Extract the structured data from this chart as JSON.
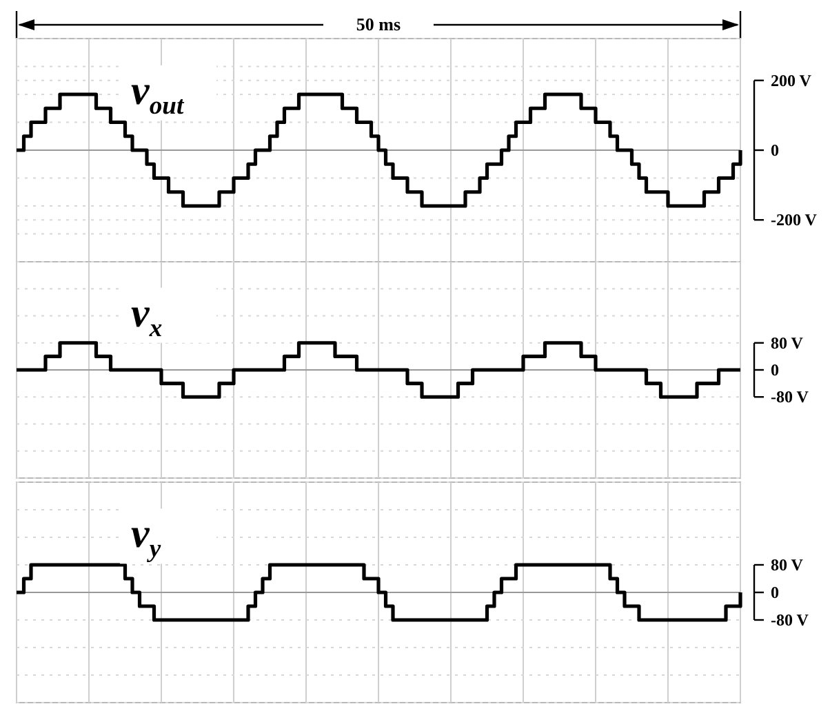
{
  "chart_data": [
    {
      "type": "step",
      "annotations": [
        "50 ms"
      ],
      "grid": true,
      "tick_labels": "y",
      "categories": [
        null,
        null,
        null,
        null,
        null,
        null,
        null,
        null,
        null,
        null,
        null,
        null,
        null,
        null,
        null,
        null,
        null,
        null,
        null,
        null,
        null,
        null,
        null,
        null,
        null,
        null,
        null,
        null,
        null,
        null,
        null,
        null,
        null,
        null,
        null,
        null,
        null,
        null,
        null,
        null,
        null,
        null,
        null,
        null,
        null,
        null,
        null,
        null,
        null,
        null,
        null,
        null,
        null,
        null,
        null,
        null,
        null,
        null,
        null,
        null,
        null,
        null,
        null,
        null,
        null,
        null,
        null,
        null,
        null,
        null,
        null,
        null,
        null,
        null,
        null,
        null,
        null,
        null,
        null,
        null,
        null,
        null,
        null,
        null,
        null,
        null,
        null,
        null,
        null,
        null,
        null,
        null,
        null,
        null,
        null,
        null,
        null,
        null,
        null,
        null,
        null
      ],
      "ylim": [
        -320,
        320
      ],
      "yticks": [
        {
          "value": -320,
          "label": null
        },
        {
          "value": -240,
          "label": null
        },
        {
          "value": -200,
          "label": "-200 V"
        },
        {
          "value": -160,
          "label": null
        },
        {
          "value": -80,
          "label": null
        },
        {
          "value": 0,
          "label": "0"
        },
        {
          "value": 80,
          "label": null
        },
        {
          "value": 160,
          "label": null
        },
        {
          "value": 200,
          "label": "200 V"
        },
        {
          "value": 240,
          "label": null
        },
        {
          "value": 320,
          "label": null
        }
      ],
      "series": [
        {
          "name": "v$_{out}$",
          "color": "#000000",
          "values": [
            0,
            40,
            80,
            80,
            120,
            120,
            160,
            160,
            160,
            160,
            160,
            120,
            120,
            80,
            80,
            40,
            0,
            0,
            -40,
            -80,
            -80,
            -120,
            -120,
            -160,
            -160,
            -160,
            -160,
            -160,
            -120,
            -120,
            -80,
            -80,
            -40,
            0,
            0,
            40,
            80,
            120,
            120,
            160,
            160,
            160,
            160,
            160,
            160,
            120,
            120,
            80,
            80,
            40,
            0,
            -40,
            -80,
            -80,
            -120,
            -120,
            -160,
            -160,
            -160,
            -160,
            -160,
            -160,
            -120,
            -120,
            -80,
            -40,
            -40,
            0,
            40,
            80,
            80,
            120,
            120,
            160,
            160,
            160,
            160,
            160,
            120,
            120,
            80,
            80,
            40,
            0,
            0,
            -40,
            -80,
            -120,
            -120,
            -120,
            -160,
            -160,
            -160,
            -160,
            -160,
            -120,
            -120,
            -80,
            -80,
            -40,
            0
          ]
        }
      ]
    },
    {
      "type": "step",
      "grid": true,
      "tick_labels": "y",
      "categories": [
        null,
        null,
        null,
        null,
        null,
        null,
        null,
        null,
        null,
        null,
        null,
        null,
        null,
        null,
        null,
        null,
        null,
        null,
        null,
        null,
        null,
        null,
        null,
        null,
        null,
        null,
        null,
        null,
        null,
        null,
        null,
        null,
        null,
        null,
        null,
        null,
        null,
        null,
        null,
        null,
        null,
        null,
        null,
        null,
        null,
        null,
        null,
        null,
        null,
        null,
        null,
        null,
        null,
        null,
        null,
        null,
        null,
        null,
        null,
        null,
        null,
        null,
        null,
        null,
        null,
        null,
        null,
        null,
        null,
        null,
        null,
        null,
        null,
        null,
        null,
        null,
        null,
        null,
        null,
        null,
        null,
        null,
        null,
        null,
        null,
        null,
        null,
        null,
        null,
        null,
        null,
        null,
        null,
        null,
        null,
        null,
        null,
        null,
        null,
        null,
        null
      ],
      "ylim": [
        -320,
        320
      ],
      "yticks": [
        {
          "value": -320,
          "label": null
        },
        {
          "value": -240,
          "label": null
        },
        {
          "value": -160,
          "label": null
        },
        {
          "value": -80,
          "label": "-80 V"
        },
        {
          "value": 0,
          "label": "0"
        },
        {
          "value": 80,
          "label": "80 V"
        },
        {
          "value": 160,
          "label": null
        },
        {
          "value": 240,
          "label": null
        },
        {
          "value": 320,
          "label": null
        }
      ],
      "series": [
        {
          "name": "v$_{x}$",
          "color": "#000000",
          "values": [
            0,
            0,
            0,
            0,
            40,
            40,
            80,
            80,
            80,
            80,
            80,
            40,
            40,
            0,
            0,
            0,
            0,
            0,
            0,
            0,
            -40,
            -40,
            -40,
            -80,
            -80,
            -80,
            -80,
            -80,
            -40,
            -40,
            0,
            0,
            0,
            0,
            0,
            0,
            0,
            40,
            40,
            80,
            80,
            80,
            80,
            80,
            40,
            40,
            40,
            0,
            0,
            0,
            0,
            0,
            0,
            0,
            -40,
            -40,
            -80,
            -80,
            -80,
            -80,
            -80,
            -40,
            -40,
            0,
            0,
            0,
            0,
            0,
            0,
            0,
            40,
            40,
            40,
            80,
            80,
            80,
            80,
            80,
            40,
            40,
            0,
            0,
            0,
            0,
            0,
            0,
            0,
            -40,
            -40,
            -80,
            -80,
            -80,
            -80,
            -80,
            -40,
            -40,
            -40,
            0,
            0,
            0,
            0
          ]
        }
      ]
    },
    {
      "type": "step",
      "grid": true,
      "tick_labels": "y",
      "categories": [
        null,
        null,
        null,
        null,
        null,
        null,
        null,
        null,
        null,
        null,
        null,
        null,
        null,
        null,
        null,
        null,
        null,
        null,
        null,
        null,
        null,
        null,
        null,
        null,
        null,
        null,
        null,
        null,
        null,
        null,
        null,
        null,
        null,
        null,
        null,
        null,
        null,
        null,
        null,
        null,
        null,
        null,
        null,
        null,
        null,
        null,
        null,
        null,
        null,
        null,
        null,
        null,
        null,
        null,
        null,
        null,
        null,
        null,
        null,
        null,
        null,
        null,
        null,
        null,
        null,
        null,
        null,
        null,
        null,
        null,
        null,
        null,
        null,
        null,
        null,
        null,
        null,
        null,
        null,
        null,
        null,
        null,
        null,
        null,
        null,
        null,
        null,
        null,
        null,
        null,
        null,
        null,
        null,
        null,
        null,
        null,
        null,
        null,
        null,
        null,
        null
      ],
      "ylim": [
        -320,
        320
      ],
      "yticks": [
        {
          "value": -320,
          "label": null
        },
        {
          "value": -240,
          "label": null
        },
        {
          "value": -160,
          "label": null
        },
        {
          "value": -80,
          "label": "-80 V"
        },
        {
          "value": 0,
          "label": "0"
        },
        {
          "value": 80,
          "label": "80 V"
        },
        {
          "value": 160,
          "label": null
        },
        {
          "value": 240,
          "label": null
        },
        {
          "value": 320,
          "label": null
        }
      ],
      "series": [
        {
          "name": "v$_{y}$",
          "color": "#000000",
          "values": [
            0,
            40,
            80,
            80,
            80,
            80,
            80,
            80,
            80,
            80,
            80,
            80,
            80,
            80,
            80,
            40,
            0,
            -40,
            -40,
            -80,
            -80,
            -80,
            -80,
            -80,
            -80,
            -80,
            -80,
            -80,
            -80,
            -80,
            -80,
            -80,
            -40,
            0,
            40,
            80,
            80,
            80,
            80,
            80,
            80,
            80,
            80,
            80,
            80,
            80,
            80,
            80,
            40,
            40,
            0,
            -40,
            -80,
            -80,
            -80,
            -80,
            -80,
            -80,
            -80,
            -80,
            -80,
            -80,
            -80,
            -80,
            -80,
            -40,
            0,
            40,
            40,
            80,
            80,
            80,
            80,
            80,
            80,
            80,
            80,
            80,
            80,
            80,
            80,
            80,
            40,
            0,
            -40,
            -40,
            -80,
            -80,
            -80,
            -80,
            -80,
            -80,
            -80,
            -80,
            -80,
            -80,
            -80,
            -80,
            -40,
            -40,
            0
          ]
        }
      ]
    }
  ]
}
